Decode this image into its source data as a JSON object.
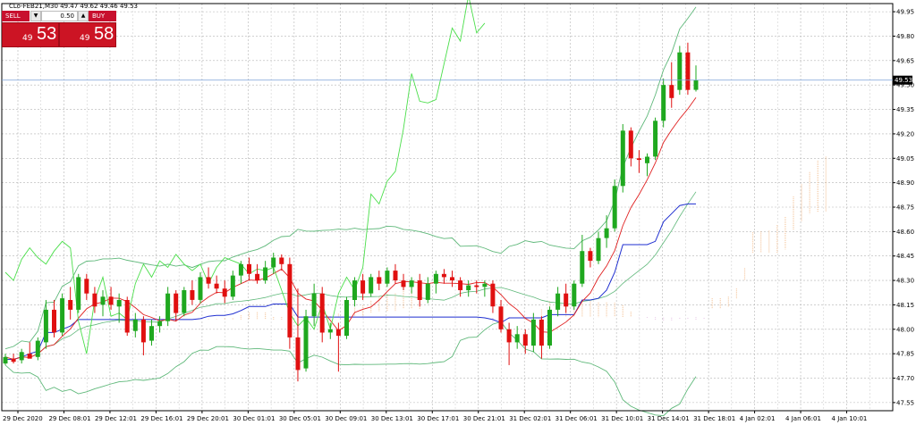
{
  "header": {
    "symbol_title": "CLo-FEB21,M30  49.47 49.62 49.46 49.53"
  },
  "trade_panel": {
    "sell_label": "SELL",
    "buy_label": "BUY",
    "lot_value": "0.50",
    "sell_price_prefix": "49",
    "sell_price_main": "53",
    "buy_price_prefix": "49",
    "buy_price_main": "58",
    "down_arrow": "▼",
    "up_arrow": "▲",
    "sell_color": "#c8102e"
  },
  "chart_data": {
    "type": "candlestick",
    "instrument": "CLo-FEB21",
    "timeframe": "M30",
    "current_price_label": "49.53",
    "ylim": [
      47.5,
      50.0
    ],
    "y_ticks": [
      "49.95",
      "49.80",
      "49.65",
      "49.50",
      "49.35",
      "49.20",
      "49.05",
      "48.90",
      "48.75",
      "48.60",
      "48.45",
      "48.30",
      "48.15",
      "48.00",
      "47.85",
      "47.70",
      "47.55"
    ],
    "x_ticks": [
      "29 Dec 2020",
      "29 Dec 08:01",
      "29 Dec 12:01",
      "29 Dec 16:01",
      "29 Dec 20:01",
      "30 Dec 01:01",
      "30 Dec 05:01",
      "30 Dec 09:01",
      "30 Dec 13:01",
      "30 Dec 17:01",
      "30 Dec 21:01",
      "31 Dec 02:01",
      "31 Dec 06:01",
      "31 Dec 10:01",
      "31 Dec 14:01",
      "31 Dec 18:01",
      "4 Jan 02:01",
      "4 Jan 06:01",
      "4 Jan 10:01"
    ],
    "grid": true,
    "colors": {
      "bull": "#1fa81f",
      "bear": "#e01010",
      "ma_fast": "#e02020",
      "kijun": "#1f2fd0",
      "bollinger": "#5fb87a",
      "chikou": "#4ade4a",
      "cloud_a": "#f5c8a0",
      "cloud_b": "#e8c8e8",
      "price_line": "#7aa0d8"
    },
    "candles": [
      {
        "o": 47.79,
        "h": 47.85,
        "l": 47.78,
        "c": 47.83
      },
      {
        "o": 47.82,
        "h": 47.85,
        "l": 47.79,
        "c": 47.8
      },
      {
        "o": 47.81,
        "h": 47.88,
        "l": 47.79,
        "c": 47.86
      },
      {
        "o": 47.85,
        "h": 47.92,
        "l": 47.83,
        "c": 47.82
      },
      {
        "o": 47.83,
        "h": 47.95,
        "l": 47.81,
        "c": 47.93
      },
      {
        "o": 47.92,
        "h": 48.18,
        "l": 47.88,
        "c": 48.12
      },
      {
        "o": 48.12,
        "h": 48.18,
        "l": 47.95,
        "c": 47.98
      },
      {
        "o": 47.98,
        "h": 48.22,
        "l": 47.96,
        "c": 48.19
      },
      {
        "o": 48.18,
        "h": 48.26,
        "l": 48.06,
        "c": 48.12
      },
      {
        "o": 48.12,
        "h": 48.34,
        "l": 48.1,
        "c": 48.32
      },
      {
        "o": 48.31,
        "h": 48.34,
        "l": 48.18,
        "c": 48.22
      },
      {
        "o": 48.22,
        "h": 48.26,
        "l": 48.1,
        "c": 48.14
      },
      {
        "o": 48.15,
        "h": 48.24,
        "l": 48.08,
        "c": 48.2
      },
      {
        "o": 48.2,
        "h": 48.26,
        "l": 48.12,
        "c": 48.15
      },
      {
        "o": 48.14,
        "h": 48.22,
        "l": 48.04,
        "c": 48.18
      },
      {
        "o": 48.18,
        "h": 48.2,
        "l": 47.96,
        "c": 47.98
      },
      {
        "o": 47.99,
        "h": 48.1,
        "l": 47.95,
        "c": 48.06
      },
      {
        "o": 48.06,
        "h": 48.08,
        "l": 47.84,
        "c": 47.92
      },
      {
        "o": 47.93,
        "h": 48.06,
        "l": 47.9,
        "c": 48.02
      },
      {
        "o": 48.02,
        "h": 48.08,
        "l": 47.98,
        "c": 48.05
      },
      {
        "o": 48.05,
        "h": 48.26,
        "l": 48.02,
        "c": 48.22
      },
      {
        "o": 48.22,
        "h": 48.24,
        "l": 48.05,
        "c": 48.1
      },
      {
        "o": 48.1,
        "h": 48.26,
        "l": 48.08,
        "c": 48.24
      },
      {
        "o": 48.24,
        "h": 48.3,
        "l": 48.15,
        "c": 48.18
      },
      {
        "o": 48.18,
        "h": 48.35,
        "l": 48.16,
        "c": 48.32
      },
      {
        "o": 48.32,
        "h": 48.38,
        "l": 48.25,
        "c": 48.28
      },
      {
        "o": 48.28,
        "h": 48.33,
        "l": 48.22,
        "c": 48.25
      },
      {
        "o": 48.25,
        "h": 48.3,
        "l": 48.16,
        "c": 48.2
      },
      {
        "o": 48.2,
        "h": 48.36,
        "l": 48.18,
        "c": 48.33
      },
      {
        "o": 48.33,
        "h": 48.42,
        "l": 48.28,
        "c": 48.4
      },
      {
        "o": 48.4,
        "h": 48.44,
        "l": 48.3,
        "c": 48.34
      },
      {
        "o": 48.34,
        "h": 48.4,
        "l": 48.28,
        "c": 48.3
      },
      {
        "o": 48.3,
        "h": 48.42,
        "l": 48.28,
        "c": 48.38
      },
      {
        "o": 48.38,
        "h": 48.47,
        "l": 48.34,
        "c": 48.44
      },
      {
        "o": 48.44,
        "h": 48.46,
        "l": 48.36,
        "c": 48.4
      },
      {
        "o": 48.4,
        "h": 48.44,
        "l": 47.88,
        "c": 47.95
      },
      {
        "o": 47.95,
        "h": 48.25,
        "l": 47.68,
        "c": 47.75
      },
      {
        "o": 47.76,
        "h": 48.12,
        "l": 47.74,
        "c": 48.08
      },
      {
        "o": 48.08,
        "h": 48.28,
        "l": 48.02,
        "c": 48.22
      },
      {
        "o": 48.22,
        "h": 48.26,
        "l": 47.92,
        "c": 47.98
      },
      {
        "o": 47.98,
        "h": 48.04,
        "l": 47.94,
        "c": 48.0
      },
      {
        "o": 48.0,
        "h": 48.04,
        "l": 47.74,
        "c": 47.96
      },
      {
        "o": 47.96,
        "h": 48.2,
        "l": 47.94,
        "c": 48.18
      },
      {
        "o": 48.18,
        "h": 48.32,
        "l": 48.14,
        "c": 48.3
      },
      {
        "o": 48.3,
        "h": 48.34,
        "l": 48.18,
        "c": 48.22
      },
      {
        "o": 48.22,
        "h": 48.34,
        "l": 48.2,
        "c": 48.32
      },
      {
        "o": 48.32,
        "h": 48.36,
        "l": 48.24,
        "c": 48.28
      },
      {
        "o": 48.28,
        "h": 48.38,
        "l": 48.26,
        "c": 48.36
      },
      {
        "o": 48.36,
        "h": 48.4,
        "l": 48.28,
        "c": 48.3
      },
      {
        "o": 48.3,
        "h": 48.34,
        "l": 48.24,
        "c": 48.26
      },
      {
        "o": 48.26,
        "h": 48.32,
        "l": 48.22,
        "c": 48.3
      },
      {
        "o": 48.3,
        "h": 48.34,
        "l": 48.14,
        "c": 48.18
      },
      {
        "o": 48.18,
        "h": 48.32,
        "l": 48.16,
        "c": 48.28
      },
      {
        "o": 48.28,
        "h": 48.36,
        "l": 48.22,
        "c": 48.34
      },
      {
        "o": 48.34,
        "h": 48.37,
        "l": 48.28,
        "c": 48.32
      },
      {
        "o": 48.32,
        "h": 48.36,
        "l": 48.26,
        "c": 48.3
      },
      {
        "o": 48.3,
        "h": 48.32,
        "l": 48.2,
        "c": 48.24
      },
      {
        "o": 48.24,
        "h": 48.3,
        "l": 48.2,
        "c": 48.27
      },
      {
        "o": 48.27,
        "h": 48.3,
        "l": 48.22,
        "c": 48.26
      },
      {
        "o": 48.26,
        "h": 48.3,
        "l": 48.2,
        "c": 48.28
      },
      {
        "o": 48.28,
        "h": 48.3,
        "l": 48.1,
        "c": 48.14
      },
      {
        "o": 48.14,
        "h": 48.18,
        "l": 47.98,
        "c": 48.0
      },
      {
        "o": 48.0,
        "h": 48.04,
        "l": 47.78,
        "c": 47.92
      },
      {
        "o": 47.92,
        "h": 48.02,
        "l": 47.88,
        "c": 47.97
      },
      {
        "o": 47.97,
        "h": 48.0,
        "l": 47.85,
        "c": 47.9
      },
      {
        "o": 47.9,
        "h": 48.1,
        "l": 47.86,
        "c": 48.06
      },
      {
        "o": 48.06,
        "h": 48.08,
        "l": 47.82,
        "c": 47.9
      },
      {
        "o": 47.9,
        "h": 48.14,
        "l": 47.88,
        "c": 48.12
      },
      {
        "o": 48.12,
        "h": 48.26,
        "l": 48.08,
        "c": 48.22
      },
      {
        "o": 48.22,
        "h": 48.28,
        "l": 48.1,
        "c": 48.14
      },
      {
        "o": 48.14,
        "h": 48.3,
        "l": 48.12,
        "c": 48.28
      },
      {
        "o": 48.28,
        "h": 48.58,
        "l": 48.26,
        "c": 48.48
      },
      {
        "o": 48.48,
        "h": 48.5,
        "l": 48.38,
        "c": 48.42
      },
      {
        "o": 48.42,
        "h": 48.6,
        "l": 48.4,
        "c": 48.56
      },
      {
        "o": 48.56,
        "h": 48.7,
        "l": 48.5,
        "c": 48.62
      },
      {
        "o": 48.62,
        "h": 48.92,
        "l": 48.6,
        "c": 48.88
      },
      {
        "o": 48.88,
        "h": 49.26,
        "l": 48.84,
        "c": 49.22
      },
      {
        "o": 49.22,
        "h": 49.24,
        "l": 49.0,
        "c": 49.05
      },
      {
        "o": 49.05,
        "h": 49.1,
        "l": 48.96,
        "c": 49.04
      },
      {
        "o": 49.02,
        "h": 49.08,
        "l": 48.94,
        "c": 49.06
      },
      {
        "o": 49.06,
        "h": 49.3,
        "l": 49.04,
        "c": 49.28
      },
      {
        "o": 49.28,
        "h": 49.54,
        "l": 49.24,
        "c": 49.5
      },
      {
        "o": 49.5,
        "h": 49.64,
        "l": 49.36,
        "c": 49.42
      },
      {
        "o": 49.47,
        "h": 49.74,
        "l": 49.44,
        "c": 49.7
      },
      {
        "o": 49.7,
        "h": 49.76,
        "l": 49.44,
        "c": 49.47
      },
      {
        "o": 49.47,
        "h": 49.62,
        "l": 49.46,
        "c": 49.53
      }
    ]
  }
}
